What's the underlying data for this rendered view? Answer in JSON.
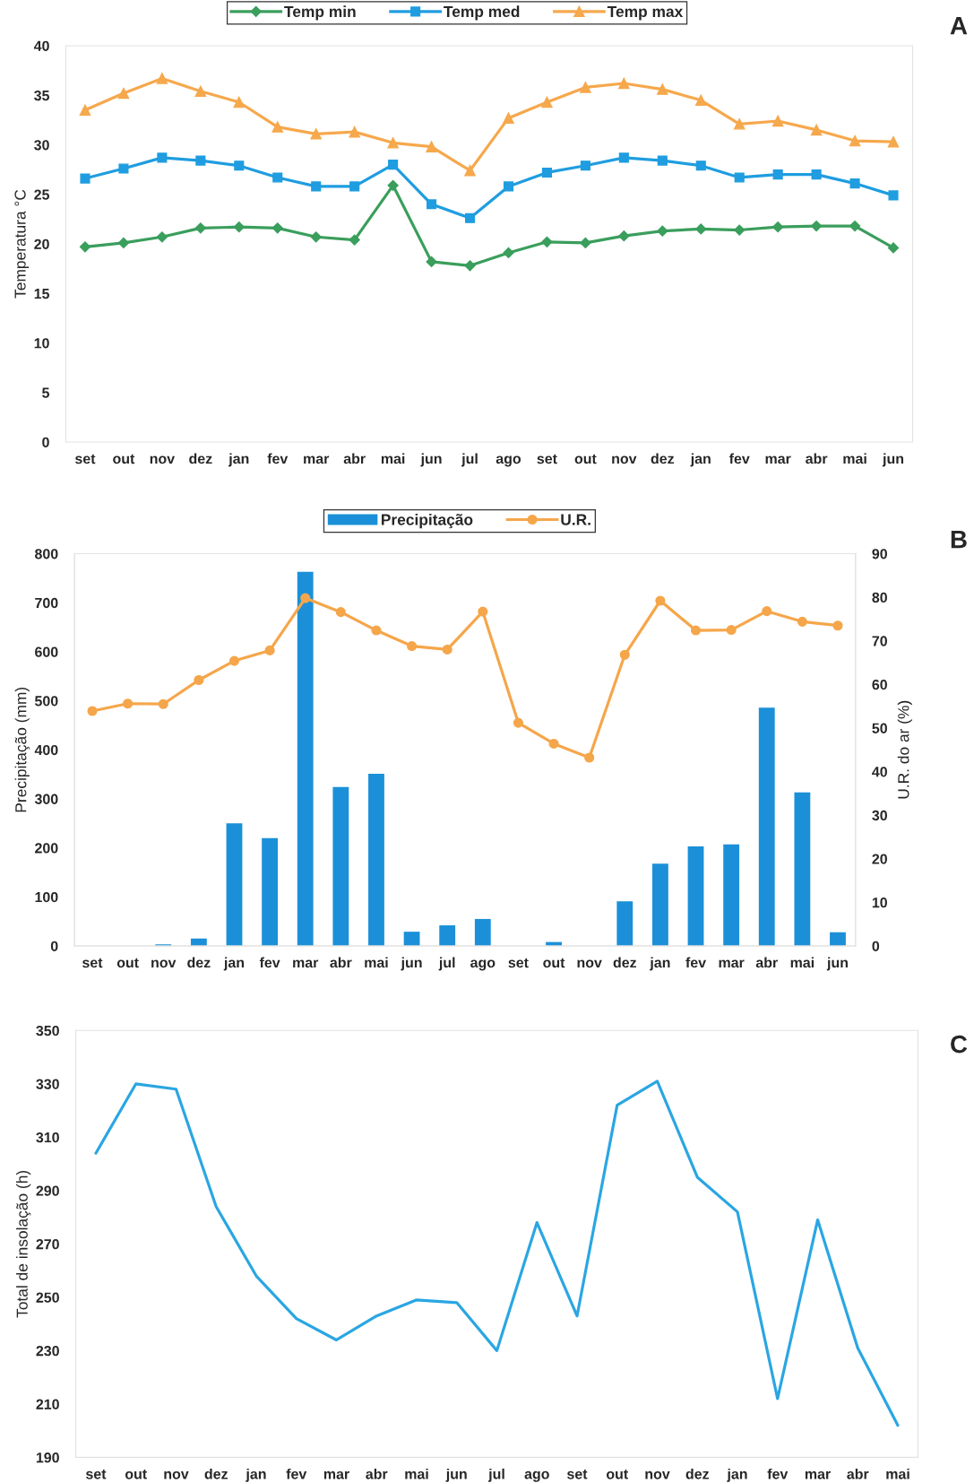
{
  "chart_data": [
    {
      "type": "line",
      "annotations": [
        "A"
      ],
      "ylabel": "Temperatura °C",
      "categories": [
        "set",
        "out",
        "nov",
        "dez",
        "jan",
        "fev",
        "mar",
        "abr",
        "mai",
        "jun",
        "jul",
        "ago",
        "set",
        "out",
        "nov",
        "dez",
        "jan",
        "fev",
        "mar",
        "abr",
        "mai",
        "jun"
      ],
      "series": [
        {
          "name": "Temp min",
          "color": "#3a9e5c",
          "marker": "diamond",
          "values": [
            19.7,
            20.1,
            20.7,
            21.6,
            21.7,
            21.6,
            20.7,
            20.4,
            25.9,
            18.2,
            17.8,
            19.1,
            20.2,
            20.1,
            20.8,
            21.3,
            21.5,
            21.4,
            21.7,
            21.8,
            21.8,
            19.6
          ]
        },
        {
          "name": "Temp med",
          "color": "#1f9de0",
          "marker": "square",
          "values": [
            26.6,
            27.6,
            28.7,
            28.4,
            27.9,
            26.7,
            25.8,
            25.8,
            28.0,
            24.0,
            22.6,
            25.8,
            27.2,
            27.9,
            28.7,
            28.4,
            27.9,
            26.7,
            27.0,
            27.0,
            26.1,
            24.9
          ]
        },
        {
          "name": "Temp max",
          "color": "#f6a84c",
          "marker": "triangle",
          "values": [
            33.5,
            35.2,
            36.7,
            35.4,
            34.3,
            31.8,
            31.1,
            31.3,
            30.2,
            29.8,
            27.4,
            32.7,
            34.3,
            35.8,
            36.2,
            35.6,
            34.5,
            32.1,
            32.4,
            31.5,
            30.4,
            30.3
          ]
        }
      ],
      "ylim": [
        0,
        40
      ],
      "yticks": [
        0,
        5,
        10,
        15,
        20,
        25,
        30,
        35,
        40
      ],
      "legend": "top"
    },
    {
      "type": "bar",
      "annotations": [
        "B"
      ],
      "ylabel": "Precipitação (mm)",
      "y2label": "U.R. do ar (%)",
      "categories": [
        "set",
        "out",
        "nov",
        "dez",
        "jan",
        "fev",
        "mar",
        "abr",
        "mai",
        "jun",
        "jul",
        "ago",
        "set",
        "out",
        "nov",
        "dez",
        "jan",
        "fev",
        "mar",
        "abr",
        "mai",
        "jun"
      ],
      "series": [
        {
          "name": "Precipitação",
          "type": "bar",
          "color": "#1b90d8",
          "values": [
            0,
            0,
            3,
            15,
            250,
            220,
            763,
            324,
            351,
            29,
            42,
            55,
            0,
            8,
            0,
            91,
            168,
            203,
            207,
            486,
            313,
            28
          ]
        },
        {
          "name": "U.R.",
          "type": "line",
          "axis": "y2",
          "color": "#f5a64a",
          "marker": "circle",
          "values": [
            53.9,
            55.6,
            55.5,
            61.0,
            65.4,
            67.8,
            79.8,
            76.6,
            72.4,
            68.8,
            68.0,
            76.7,
            51.2,
            46.4,
            43.2,
            66.8,
            79.2,
            72.4,
            72.5,
            76.8,
            74.4,
            73.5
          ]
        }
      ],
      "ylim": [
        0,
        800
      ],
      "yticks": [
        0,
        100,
        200,
        300,
        400,
        500,
        600,
        700,
        800
      ],
      "y2lim": [
        0,
        90
      ],
      "y2ticks": [
        0,
        10,
        20,
        30,
        40,
        50,
        60,
        70,
        80,
        90
      ],
      "legend": "top"
    },
    {
      "type": "line",
      "annotations": [
        "C"
      ],
      "ylabel": "Total de insolação (h)",
      "categories": [
        "set",
        "out",
        "nov",
        "dez",
        "jan",
        "fev",
        "mar",
        "abr",
        "mai",
        "jun",
        "jul",
        "ago",
        "set",
        "out",
        "nov",
        "dez",
        "jan",
        "fev",
        "mar",
        "abr",
        "mai"
      ],
      "series": [
        {
          "color": "#2aa6e2",
          "values": [
            304,
            330,
            328,
            284,
            258,
            242,
            234,
            243,
            249,
            248,
            230,
            278,
            243,
            322,
            331,
            295,
            282,
            212,
            279,
            231,
            202
          ]
        }
      ],
      "ylim": [
        190,
        350
      ],
      "yticks": [
        190,
        210,
        230,
        250,
        270,
        290,
        310,
        330,
        350
      ]
    }
  ]
}
